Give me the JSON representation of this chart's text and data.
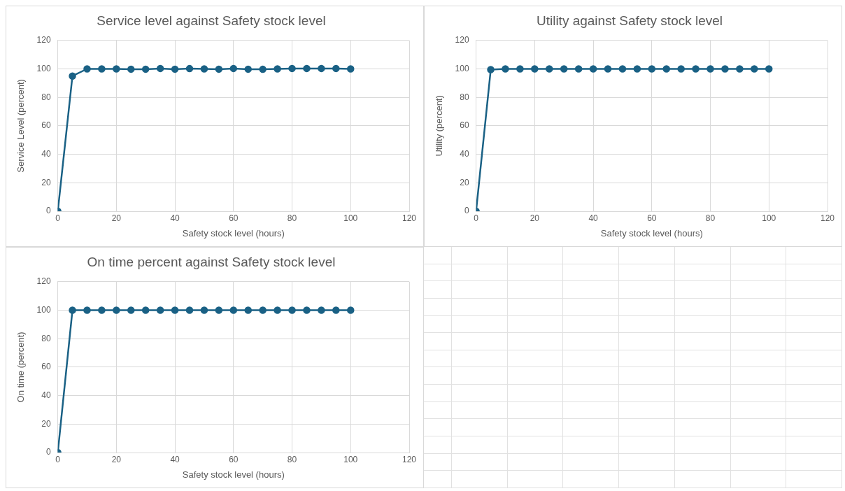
{
  "chart_data": [
    {
      "type": "line",
      "title": "Service level against Safety stock level",
      "xlabel": "Safety stock level (hours)",
      "ylabel": "Service Level (percent)",
      "x": [
        0,
        5,
        10,
        15,
        20,
        25,
        30,
        35,
        40,
        45,
        50,
        55,
        60,
        65,
        70,
        75,
        80,
        85,
        90,
        95,
        100
      ],
      "series": [
        {
          "color": "#1a6185",
          "values": [
            0,
            95,
            100,
            100,
            100,
            99.8,
            99.8,
            100.3,
            99.8,
            100.2,
            100,
            99.8,
            100.3,
            99.8,
            99.7,
            100,
            100.3,
            100.3,
            100.3,
            100.3,
            100
          ]
        }
      ],
      "xlim": [
        0,
        120
      ],
      "xticks": [
        0,
        20,
        40,
        60,
        80,
        100,
        120
      ],
      "ylim": [
        0,
        120
      ],
      "yticks": [
        0,
        20,
        40,
        60,
        80,
        100,
        120
      ],
      "grid": true,
      "legend": false,
      "marker": "circle",
      "line_style": "solid"
    },
    {
      "type": "line",
      "title": "Utility against Safety stock level",
      "xlabel": "Safety stock level (hours)",
      "ylabel": "Utility (percent)",
      "x": [
        0,
        5,
        10,
        15,
        20,
        25,
        30,
        35,
        40,
        45,
        50,
        55,
        60,
        65,
        70,
        75,
        80,
        85,
        90,
        95,
        100
      ],
      "series": [
        {
          "color": "#1a6185",
          "values": [
            0,
            99.5,
            100,
            100,
            100,
            100,
            100,
            100,
            100,
            100,
            100,
            100,
            100,
            100,
            100,
            100,
            100,
            100,
            100,
            100,
            100
          ]
        }
      ],
      "xlim": [
        0,
        120
      ],
      "xticks": [
        0,
        20,
        40,
        60,
        80,
        100,
        120
      ],
      "ylim": [
        0,
        120
      ],
      "yticks": [
        0,
        20,
        40,
        60,
        80,
        100,
        120
      ],
      "grid": true,
      "legend": false,
      "marker": "circle",
      "line_style": "solid"
    },
    {
      "type": "line",
      "title": "On time percent against Safety stock level",
      "xlabel": "Safety stock level (hours)",
      "ylabel": "On time (percent)",
      "x": [
        0,
        5,
        10,
        15,
        20,
        25,
        30,
        35,
        40,
        45,
        50,
        55,
        60,
        65,
        70,
        75,
        80,
        85,
        90,
        95,
        100
      ],
      "series": [
        {
          "color": "#1a6185",
          "values": [
            0,
            100,
            100,
            100,
            100,
            100,
            100,
            100,
            100,
            100,
            100,
            100,
            100,
            100,
            100,
            100,
            100,
            100,
            100,
            100,
            100
          ]
        }
      ],
      "xlim": [
        0,
        120
      ],
      "xticks": [
        0,
        20,
        40,
        60,
        80,
        100,
        120
      ],
      "ylim": [
        0,
        120
      ],
      "yticks": [
        0,
        20,
        40,
        60,
        80,
        100,
        120
      ],
      "grid": true,
      "legend": false,
      "marker": "circle",
      "line_style": "solid"
    }
  ]
}
